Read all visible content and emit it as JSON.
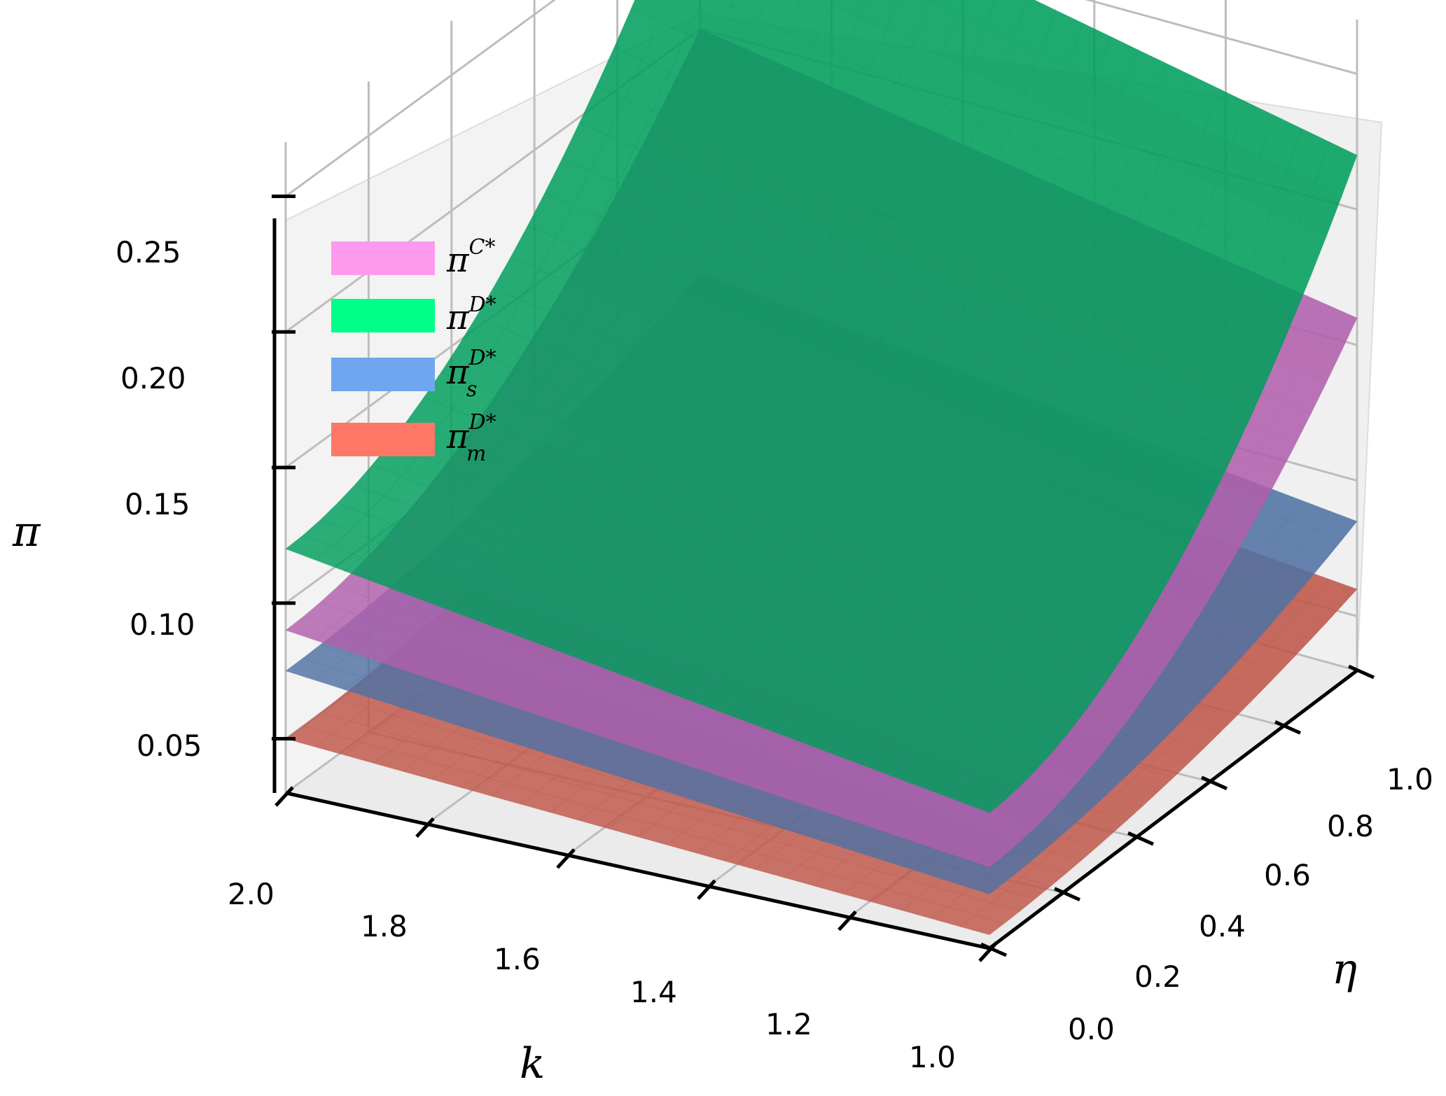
{
  "chart_data": {
    "type": "surface3d",
    "title": "",
    "xlabel": "k",
    "ylabel": "η",
    "zlabel": "π",
    "x_ticks": [
      "2.0",
      "1.8",
      "1.6",
      "1.4",
      "1.2",
      "1.0"
    ],
    "y_ticks": [
      "0.0",
      "0.2",
      "0.4",
      "0.6",
      "0.8",
      "1.0"
    ],
    "z_ticks": [
      "0.05",
      "0.10",
      "0.15",
      "0.20",
      "0.25"
    ],
    "xlim": [
      1.0,
      2.0
    ],
    "ylim": [
      0.0,
      1.0
    ],
    "zlim": [
      0.03,
      0.27
    ],
    "legend_placement": "top-left",
    "series": [
      {
        "name": "πC*",
        "base": "π",
        "sup": "C*",
        "sub": "",
        "color": "#ff99ee",
        "render_color": "#b15fac",
        "corners": {
          "k2_eta0": 0.09,
          "k1_eta0": 0.06,
          "k2_eta1": 0.2,
          "k1_eta1": 0.16
        }
      },
      {
        "name": "πD*",
        "base": "π",
        "sup": "D*",
        "sub": "",
        "color": "#00ff88",
        "render_color": "#009e5c",
        "corners": {
          "k2_eta0": 0.12,
          "k1_eta0": 0.08,
          "k2_eta1": 0.27,
          "k1_eta1": 0.22
        }
      },
      {
        "name": "πsD*",
        "base": "π",
        "sup": "D*",
        "sub": "s",
        "color": "#6fa6ef",
        "render_color": "#4f72a3",
        "corners": {
          "k2_eta0": 0.075,
          "k1_eta0": 0.05,
          "k2_eta1": 0.11,
          "k1_eta1": 0.085
        }
      },
      {
        "name": "πmD*",
        "base": "π",
        "sup": "D*",
        "sub": "m",
        "color": "#ff7766",
        "render_color": "#bf5548",
        "corners": {
          "k2_eta0": 0.05,
          "k1_eta0": 0.035,
          "k2_eta1": 0.08,
          "k1_eta1": 0.06
        }
      }
    ]
  }
}
